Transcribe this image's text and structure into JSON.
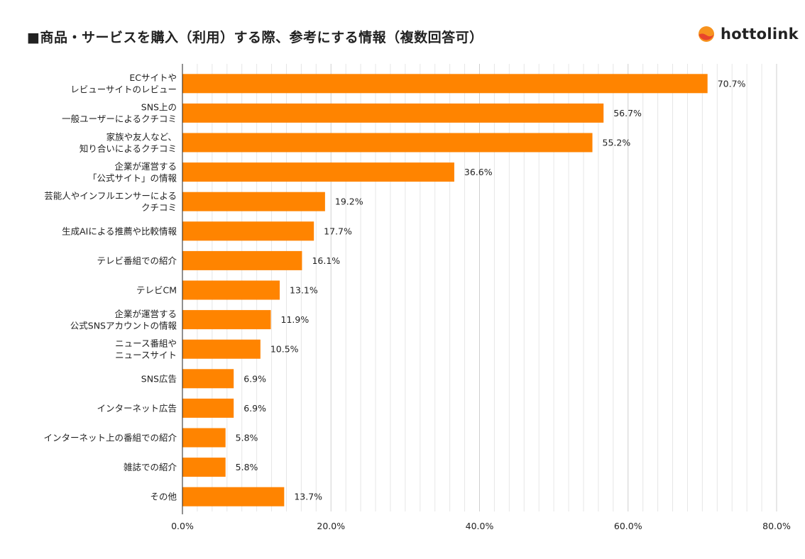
{
  "title": "■商品・サービスを購入（利用）する際、参考にする情報（複数回答可）",
  "logo": {
    "text": "hottolink"
  },
  "colors": {
    "bar": "#FF8400",
    "grid_major": "#cfcfcf",
    "grid_minor": "#e6e6e6",
    "axis": "#222222",
    "logo_orange": "#F7931E",
    "logo_red": "#E8452C"
  },
  "chart_data": {
    "type": "bar",
    "orientation": "horizontal",
    "categories": [
      [
        "ECサイトや",
        "レビューサイトのレビュー"
      ],
      [
        "SNS上の",
        "一般ユーザーによるクチコミ"
      ],
      [
        "家族や友人など、",
        "知り合いによるクチコミ"
      ],
      [
        "企業が運営する",
        "「公式サイト」の情報"
      ],
      [
        "芸能人やインフルエンサーによる",
        "クチコミ"
      ],
      [
        "生成AIによる推薦や比較情報"
      ],
      [
        "テレビ番組での紹介"
      ],
      [
        "テレビCM"
      ],
      [
        "企業が運営する",
        "公式SNSアカウントの情報"
      ],
      [
        "ニュース番組や",
        "ニュースサイト"
      ],
      [
        "SNS広告"
      ],
      [
        "インターネット広告"
      ],
      [
        "インターネット上の番組での紹介"
      ],
      [
        "雑誌での紹介"
      ],
      [
        "その他"
      ]
    ],
    "values": [
      70.7,
      56.7,
      55.2,
      36.6,
      19.2,
      17.7,
      16.1,
      13.1,
      11.9,
      10.5,
      6.9,
      6.9,
      5.8,
      5.8,
      13.7
    ],
    "value_labels": [
      "70.7%",
      "56.7%",
      "55.2%",
      "36.6%",
      "19.2%",
      "17.7%",
      "16.1%",
      "13.1%",
      "11.9%",
      "10.5%",
      "6.9%",
      "6.9%",
      "5.8%",
      "5.8%",
      "13.7%"
    ],
    "xlim": [
      0,
      80
    ],
    "x_ticks": [
      0,
      20,
      40,
      60,
      80
    ],
    "x_tick_labels": [
      "0.0%",
      "20.0%",
      "40.0%",
      "60.0%",
      "80.0%"
    ],
    "minor_step": 2,
    "grid": true,
    "legend": "none"
  }
}
